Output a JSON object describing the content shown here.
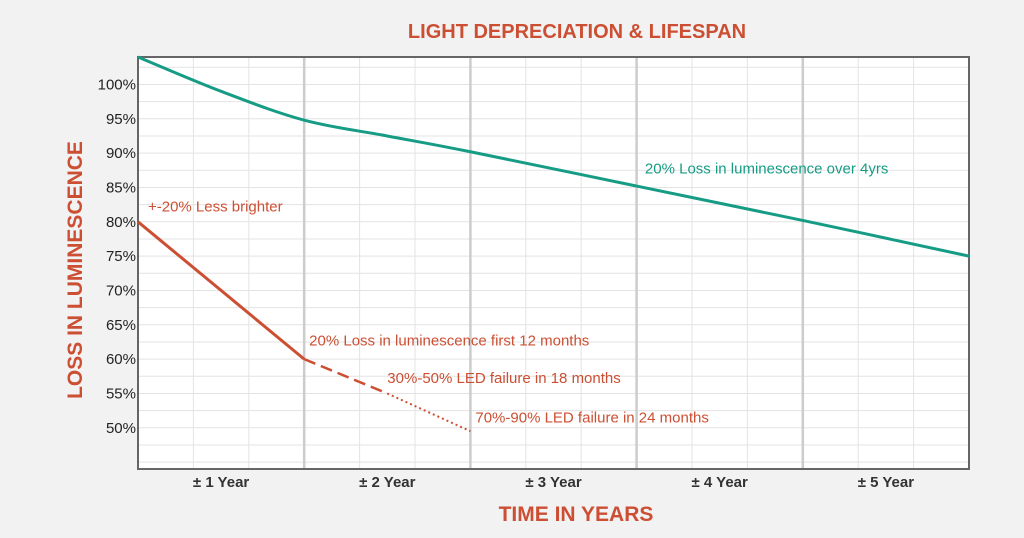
{
  "chart_data": {
    "type": "line",
    "title": "LIGHT DEPRECIATION & LIFESPAN",
    "xlabel": "TIME IN YEARS",
    "ylabel": "LOSS IN LUMINESCENCE",
    "x_categories": [
      "± 1 Year",
      "± 2 Year",
      "± 3 Year",
      "± 4 Year",
      "± 5 Year"
    ],
    "xlim": [
      0,
      5
    ],
    "y_ticks": [
      "100%",
      "95%",
      "90%",
      "85%",
      "80%",
      "75%",
      "70%",
      "65%",
      "60%",
      "55%",
      "50%"
    ],
    "ylim": [
      44,
      104
    ],
    "grid": true,
    "series": [
      {
        "color": "#169c85",
        "points": [
          {
            "x": 0,
            "y": 104
          },
          {
            "x": 0.5,
            "y": 99
          },
          {
            "x": 1,
            "y": 94.8
          },
          {
            "x": 1.5,
            "y": 92.5
          },
          {
            "x": 2,
            "y": 90.2
          },
          {
            "x": 3,
            "y": 85.2
          },
          {
            "x": 4,
            "y": 80.2
          },
          {
            "x": 5,
            "y": 75
          }
        ]
      },
      {
        "color": "#cc4f33",
        "segments": [
          {
            "style": "solid",
            "points": [
              {
                "x": 0,
                "y": 80
              },
              {
                "x": 1,
                "y": 60
              }
            ]
          },
          {
            "style": "dashed",
            "points": [
              {
                "x": 1,
                "y": 60
              },
              {
                "x": 1.5,
                "y": 55
              }
            ]
          },
          {
            "style": "dotted",
            "points": [
              {
                "x": 1.5,
                "y": 55
              },
              {
                "x": 2,
                "y": 49.5
              }
            ]
          }
        ]
      }
    ],
    "annotations": [
      {
        "text": "20% Loss in luminescence over 4yrs",
        "x": 3.05,
        "y": 87,
        "color": "#169c85"
      },
      {
        "text": "+-20% Less brighter",
        "x": 0.06,
        "y": 81.5,
        "color": "#cc4f33"
      },
      {
        "text": "20% Loss in luminescence first 12 months",
        "x": 1.03,
        "y": 62,
        "color": "#cc4f33"
      },
      {
        "text": "30%-50% LED failure in 18 months",
        "x": 1.5,
        "y": 56.5,
        "color": "#cc4f33"
      },
      {
        "text": "70%-90% LED failure in 24 months",
        "x": 2.03,
        "y": 50.8,
        "color": "#cc4f33"
      }
    ]
  },
  "colors": {
    "accent": "#cc4f33",
    "teal": "#169c85",
    "background": "#f2f2f2",
    "plot_background": "#ffffff",
    "grid": "#e3e3e3",
    "major_grid": "#cccccc"
  }
}
